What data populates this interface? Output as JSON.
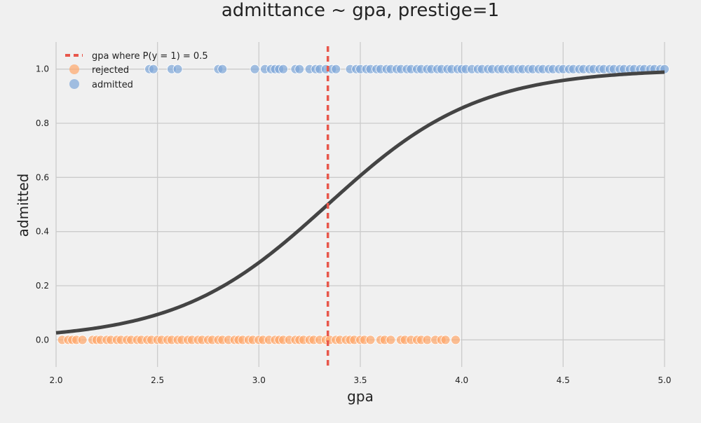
{
  "chart_data": {
    "type": "scatter",
    "title": "admittance ~ gpa, prestige=1",
    "xlabel": "gpa",
    "ylabel": "admitted",
    "xlim": [
      2.0,
      5.0
    ],
    "ylim": [
      -0.1,
      1.1
    ],
    "xticks": [
      "2.0",
      "2.5",
      "3.0",
      "3.5",
      "4.0",
      "4.5",
      "5.0"
    ],
    "yticks": [
      "0.0",
      "0.2",
      "0.4",
      "0.6",
      "0.8",
      "1.0"
    ],
    "grid": true,
    "legend_position": "top-left",
    "threshold": {
      "label": "gpa where P(y = 1) = 0.5",
      "x": 3.34,
      "color": "#e8574b"
    },
    "curve": {
      "type": "logistic",
      "midpoint": 3.34,
      "slope": 2.7,
      "color": "#444444"
    },
    "series": [
      {
        "name": "rejected",
        "y": 0,
        "color": "#ffa76a",
        "x": [
          2.03,
          2.06,
          2.08,
          2.1,
          2.13,
          2.18,
          2.2,
          2.22,
          2.25,
          2.27,
          2.3,
          2.32,
          2.35,
          2.37,
          2.4,
          2.42,
          2.45,
          2.47,
          2.5,
          2.52,
          2.55,
          2.57,
          2.6,
          2.62,
          2.65,
          2.67,
          2.7,
          2.72,
          2.75,
          2.77,
          2.8,
          2.82,
          2.85,
          2.88,
          2.9,
          2.92,
          2.95,
          2.97,
          3.0,
          3.02,
          3.05,
          3.08,
          3.1,
          3.12,
          3.15,
          3.18,
          3.2,
          3.22,
          3.25,
          3.27,
          3.3,
          3.33,
          3.35,
          3.38,
          3.4,
          3.43,
          3.45,
          3.47,
          3.5,
          3.52,
          3.55,
          3.6,
          3.62,
          3.65,
          3.7,
          3.72,
          3.75,
          3.78,
          3.8,
          3.83,
          3.87,
          3.9,
          3.92,
          3.97
        ]
      },
      {
        "name": "admitted",
        "y": 1,
        "color": "#7ea6d8",
        "x": [
          2.46,
          2.48,
          2.57,
          2.6,
          2.8,
          2.82,
          2.98,
          3.03,
          3.06,
          3.08,
          3.1,
          3.12,
          3.18,
          3.2,
          3.25,
          3.28,
          3.3,
          3.33,
          3.36,
          3.38,
          3.45,
          3.48,
          3.5,
          3.53,
          3.55,
          3.58,
          3.6,
          3.63,
          3.65,
          3.68,
          3.7,
          3.73,
          3.75,
          3.78,
          3.8,
          3.83,
          3.85,
          3.88,
          3.9,
          3.93,
          3.95,
          3.98,
          4.0,
          4.02,
          4.05,
          4.08,
          4.1,
          4.13,
          4.15,
          4.18,
          4.2,
          4.23,
          4.25,
          4.28,
          4.3,
          4.33,
          4.35,
          4.38,
          4.4,
          4.43,
          4.45,
          4.48,
          4.5,
          4.53,
          4.55,
          4.58,
          4.6,
          4.63,
          4.65,
          4.68,
          4.7,
          4.73,
          4.75,
          4.78,
          4.8,
          4.83,
          4.85,
          4.88,
          4.9,
          4.93,
          4.95,
          4.98,
          5.0
        ]
      }
    ]
  }
}
